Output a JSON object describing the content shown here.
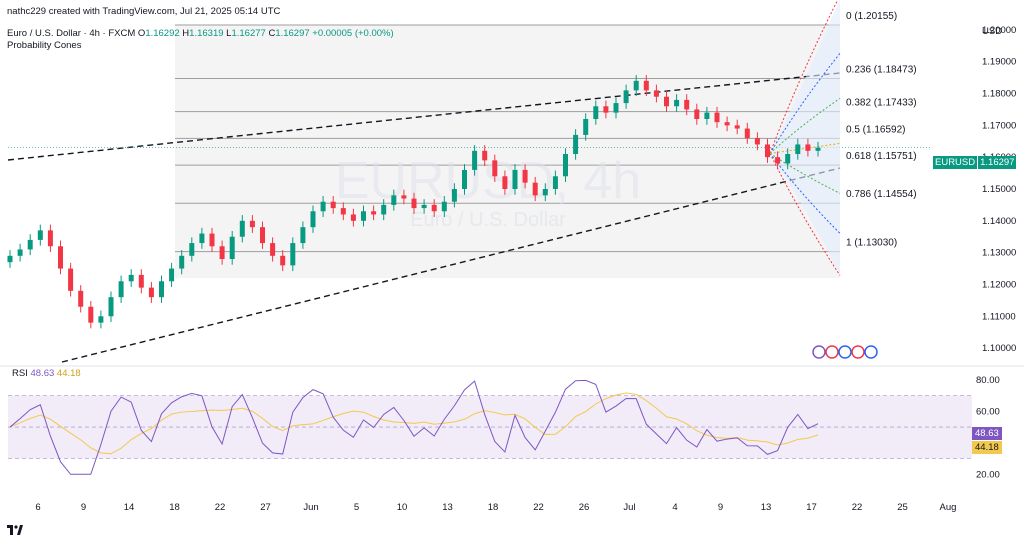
{
  "header": {
    "author_line": "nathc229 created with TradingView.com, Jul 21, 2025 05:14 UTC"
  },
  "legend": {
    "symbol_line": "Euro / U.S. Dollar · 4h · FXCM",
    "ohlc": {
      "open_label": "O",
      "open": "1.16292",
      "high_label": "H",
      "high": "1.16319",
      "low_label": "L",
      "low": "1.16277",
      "close_label": "C",
      "close": "1.16297",
      "change": "+0.00005 (+0.00%)"
    },
    "indicator": "Probability Cones"
  },
  "watermark": {
    "ticker": "EURUSD, 4h",
    "name": "Euro / U.S. Dollar"
  },
  "price_axis": {
    "currency": "USD",
    "ticks": [
      "1.20000",
      "1.19000",
      "1.18000",
      "1.17000",
      "1.16000",
      "1.15000",
      "1.14000",
      "1.13000",
      "1.12000",
      "1.11000",
      "1.10000"
    ]
  },
  "last_price": {
    "symbol": "EURUSD",
    "value": "1.16297",
    "color": "#089981"
  },
  "fibonacci": [
    {
      "label": "0 (1.20155)",
      "price": 1.20155
    },
    {
      "label": "0.236 (1.18473)",
      "price": 1.18473
    },
    {
      "label": "0.382 (1.17433)",
      "price": 1.17433
    },
    {
      "label": "0.5 (1.16592)",
      "price": 1.16592
    },
    {
      "label": "0.618 (1.15751)",
      "price": 1.15751
    },
    {
      "label": "0.786 (1.14554)",
      "price": 1.14554
    },
    {
      "label": "1 (1.13030)",
      "price": 1.1303
    }
  ],
  "rsi": {
    "label": "RSI",
    "value": "48.63",
    "ma_value": "44.18",
    "ticks": [
      "80.00",
      "60.00",
      "20.00"
    ],
    "band_upper": 70,
    "band_lower": 30,
    "line_color": "#7e57c2",
    "ma_color": "#f2c94c"
  },
  "time_axis": {
    "labels": [
      "6",
      "9",
      "14",
      "18",
      "22",
      "27",
      "Jun",
      "5",
      "10",
      "13",
      "18",
      "22",
      "26",
      "Jul",
      "4",
      "9",
      "13",
      "17",
      "22",
      "25",
      "Aug"
    ]
  },
  "colors": {
    "up": "#089981",
    "down": "#f23645"
  },
  "chart_data": {
    "type": "candlestick",
    "title": "EURUSD, 4h",
    "ylabel": "USD",
    "ylim": [
      1.095,
      1.205
    ],
    "trend_lines": "dashed black ascending channel",
    "close_series": [
      1.129,
      1.131,
      1.134,
      1.137,
      1.132,
      1.125,
      1.118,
      1.113,
      1.108,
      1.11,
      1.116,
      1.121,
      1.123,
      1.119,
      1.116,
      1.121,
      1.125,
      1.129,
      1.133,
      1.136,
      1.132,
      1.128,
      1.135,
      1.14,
      1.138,
      1.133,
      1.129,
      1.126,
      1.133,
      1.138,
      1.143,
      1.146,
      1.144,
      1.142,
      1.14,
      1.143,
      1.142,
      1.145,
      1.148,
      1.147,
      1.144,
      1.145,
      1.143,
      1.146,
      1.15,
      1.156,
      1.162,
      1.159,
      1.154,
      1.15,
      1.156,
      1.152,
      1.148,
      1.15,
      1.154,
      1.161,
      1.167,
      1.172,
      1.176,
      1.174,
      1.177,
      1.181,
      1.184,
      1.181,
      1.179,
      1.176,
      1.178,
      1.175,
      1.172,
      1.174,
      1.171,
      1.17,
      1.169,
      1.166,
      1.164,
      1.16,
      1.158,
      1.161,
      1.164,
      1.162,
      1.163
    ]
  }
}
